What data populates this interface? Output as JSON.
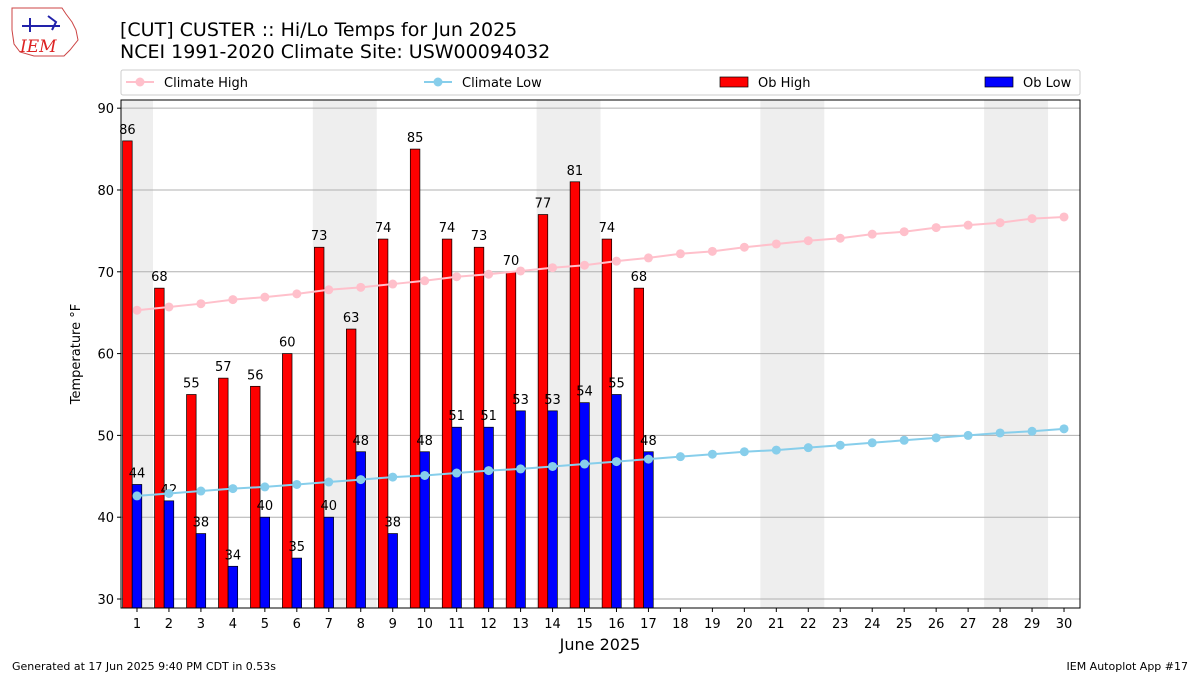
{
  "logo": "IEM",
  "footer_left": "Generated at 17 Jun 2025 9:40 PM CDT in 0.53s",
  "footer_right": "IEM Autoplot App #17",
  "chart_data": {
    "type": "bar",
    "title": "[CUT] CUSTER :: Hi/Lo Temps for Jun 2025",
    "subtitle": "NCEI 1991-2020 Climate Site: USW00094032",
    "xlabel": "June 2025",
    "ylabel": "Temperature °F",
    "x": [
      1,
      2,
      3,
      4,
      5,
      6,
      7,
      8,
      9,
      10,
      11,
      12,
      13,
      14,
      15,
      16,
      17,
      18,
      19,
      20,
      21,
      22,
      23,
      24,
      25,
      26,
      27,
      28,
      29,
      30
    ],
    "xlim": [
      0.5,
      30.5
    ],
    "xticks": [
      1,
      2,
      3,
      4,
      5,
      6,
      7,
      8,
      9,
      10,
      11,
      12,
      13,
      14,
      15,
      16,
      17,
      18,
      19,
      20,
      21,
      22,
      23,
      24,
      25,
      26,
      27,
      28,
      29,
      30
    ],
    "ylim": [
      28.9,
      91
    ],
    "yticks": [
      30,
      40,
      50,
      60,
      70,
      80,
      90
    ],
    "grid": true,
    "legend": "top",
    "shaded_ranges": [
      [
        0.5,
        1.5
      ],
      [
        6.5,
        8.5
      ],
      [
        13.5,
        15.5
      ],
      [
        20.5,
        22.5
      ],
      [
        27.5,
        29.5
      ]
    ],
    "shade_color": "#eeeeee",
    "series": [
      {
        "name": "Climate High",
        "type": "line",
        "color": "#ffc0cb",
        "values": [
          65.3,
          65.7,
          66.1,
          66.6,
          66.9,
          67.3,
          67.8,
          68.1,
          68.5,
          68.9,
          69.4,
          69.7,
          70.1,
          70.5,
          70.8,
          71.3,
          71.7,
          72.2,
          72.5,
          73.0,
          73.4,
          73.8,
          74.1,
          74.6,
          74.9,
          75.4,
          75.7,
          76.0,
          76.5,
          76.7
        ]
      },
      {
        "name": "Climate Low",
        "type": "line",
        "color": "#87ceeb",
        "values": [
          42.6,
          42.9,
          43.2,
          43.5,
          43.7,
          44.0,
          44.3,
          44.6,
          44.9,
          45.1,
          45.4,
          45.7,
          45.9,
          46.2,
          46.5,
          46.8,
          47.1,
          47.4,
          47.7,
          48.0,
          48.2,
          48.5,
          48.8,
          49.1,
          49.4,
          49.7,
          50.0,
          50.3,
          50.5,
          50.8
        ]
      },
      {
        "name": "Ob High",
        "type": "bar",
        "color": "#ff0000",
        "values": [
          86,
          68,
          55,
          57,
          56,
          60,
          73,
          63,
          74,
          85,
          74,
          73,
          70,
          77,
          81,
          74,
          68,
          null,
          null,
          null,
          null,
          null,
          null,
          null,
          null,
          null,
          null,
          null,
          null,
          null
        ]
      },
      {
        "name": "Ob Low",
        "type": "bar",
        "color": "#0000ff",
        "values": [
          44,
          42,
          38,
          34,
          40,
          35,
          40,
          48,
          38,
          48,
          51,
          51,
          53,
          53,
          54,
          55,
          48,
          null,
          null,
          null,
          null,
          null,
          null,
          null,
          null,
          null,
          null,
          null,
          null,
          null
        ]
      }
    ]
  }
}
